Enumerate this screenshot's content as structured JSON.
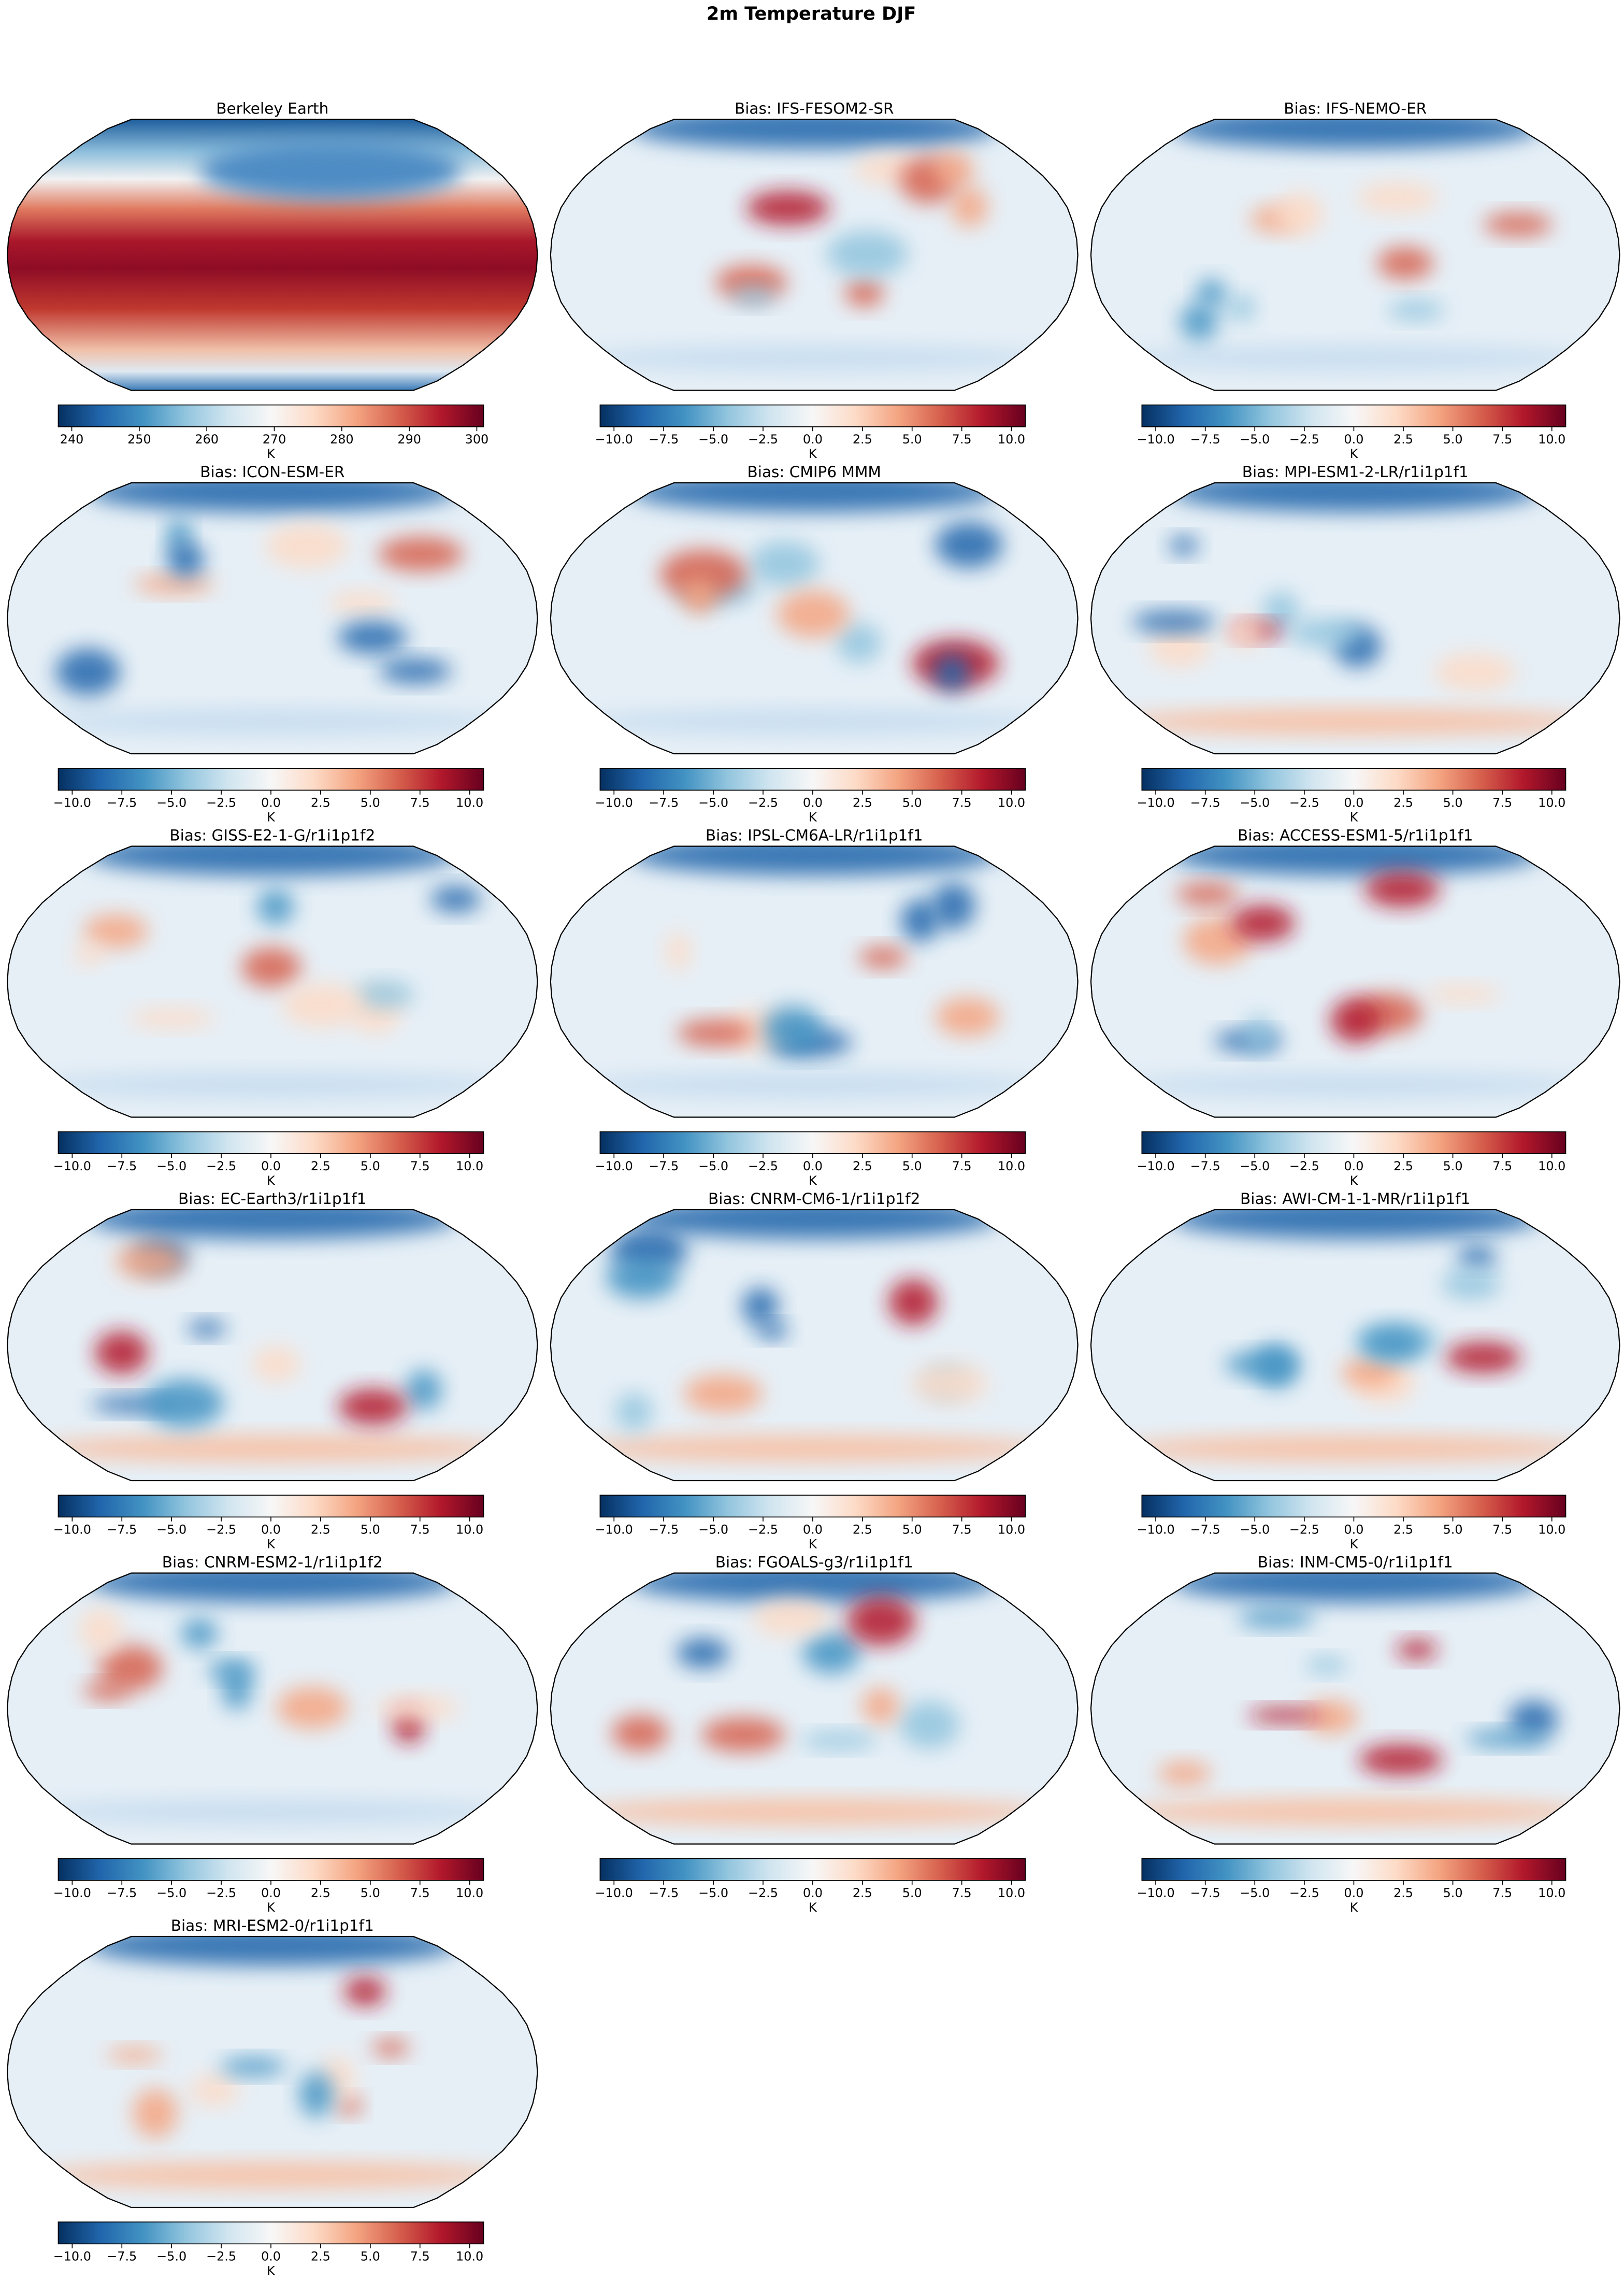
{
  "title": "2m Temperature DJF",
  "panels": [
    {
      "title": "Berkeley Earth",
      "colorbar": {
        "label": "K",
        "lim": [
          238,
          301
        ],
        "ticks": [
          240,
          250,
          260,
          270,
          280,
          290,
          300
        ]
      }
    },
    {
      "title": "Bias: IFS-FESOM2-SR",
      "colorbar": {
        "label": "K",
        "lim": [
          -10.7,
          10.7
        ],
        "ticks": [
          {
            "value": -10,
            "label": "−10.0"
          },
          {
            "value": -7.5,
            "label": "−7.5"
          },
          {
            "value": -5,
            "label": "−5.0"
          },
          {
            "value": -2.5,
            "label": "−2.5"
          },
          {
            "value": 0,
            "label": "0.0"
          },
          {
            "value": 2.5,
            "label": "2.5"
          },
          {
            "value": 5,
            "label": "5.0"
          },
          {
            "value": 7.5,
            "label": "7.5"
          },
          {
            "value": 10,
            "label": "10.0"
          }
        ]
      }
    },
    {
      "title": "Bias: IFS-NEMO-ER",
      "colorbar": {
        "label": "K",
        "lim": [
          -10.7,
          10.7
        ],
        "ticks": [
          {
            "value": -10,
            "label": "−10.0"
          },
          {
            "value": -7.5,
            "label": "−7.5"
          },
          {
            "value": -5,
            "label": "−5.0"
          },
          {
            "value": -2.5,
            "label": "−2.5"
          },
          {
            "value": 0,
            "label": "0.0"
          },
          {
            "value": 2.5,
            "label": "2.5"
          },
          {
            "value": 5,
            "label": "5.0"
          },
          {
            "value": 7.5,
            "label": "7.5"
          },
          {
            "value": 10,
            "label": "10.0"
          }
        ]
      }
    },
    {
      "title": "Bias: ICON-ESM-ER",
      "colorbar": {
        "label": "K",
        "lim": [
          -10.7,
          10.7
        ],
        "ticks": [
          {
            "value": -10,
            "label": "−10.0"
          },
          {
            "value": -7.5,
            "label": "−7.5"
          },
          {
            "value": -5,
            "label": "−5.0"
          },
          {
            "value": -2.5,
            "label": "−2.5"
          },
          {
            "value": 0,
            "label": "0.0"
          },
          {
            "value": 2.5,
            "label": "2.5"
          },
          {
            "value": 5,
            "label": "5.0"
          },
          {
            "value": 7.5,
            "label": "7.5"
          },
          {
            "value": 10,
            "label": "10.0"
          }
        ]
      }
    },
    {
      "title": "Bias: CMIP6 MMM",
      "colorbar": {
        "label": "K",
        "lim": [
          -10.7,
          10.7
        ],
        "ticks": [
          {
            "value": -10,
            "label": "−10.0"
          },
          {
            "value": -7.5,
            "label": "−7.5"
          },
          {
            "value": -5,
            "label": "−5.0"
          },
          {
            "value": -2.5,
            "label": "−2.5"
          },
          {
            "value": 0,
            "label": "0.0"
          },
          {
            "value": 2.5,
            "label": "2.5"
          },
          {
            "value": 5,
            "label": "5.0"
          },
          {
            "value": 7.5,
            "label": "7.5"
          },
          {
            "value": 10,
            "label": "10.0"
          }
        ]
      }
    },
    {
      "title": "Bias: MPI-ESM1-2-LR/r1i1p1f1",
      "colorbar": {
        "label": "K",
        "lim": [
          -10.7,
          10.7
        ],
        "ticks": [
          {
            "value": -10,
            "label": "−10.0"
          },
          {
            "value": -7.5,
            "label": "−7.5"
          },
          {
            "value": -5,
            "label": "−5.0"
          },
          {
            "value": -2.5,
            "label": "−2.5"
          },
          {
            "value": 0,
            "label": "0.0"
          },
          {
            "value": 2.5,
            "label": "2.5"
          },
          {
            "value": 5,
            "label": "5.0"
          },
          {
            "value": 7.5,
            "label": "7.5"
          },
          {
            "value": 10,
            "label": "10.0"
          }
        ]
      }
    },
    {
      "title": "Bias: GISS-E2-1-G/r1i1p1f2",
      "colorbar": {
        "label": "K",
        "lim": [
          -10.7,
          10.7
        ],
        "ticks": [
          {
            "value": -10,
            "label": "−10.0"
          },
          {
            "value": -7.5,
            "label": "−7.5"
          },
          {
            "value": -5,
            "label": "−5.0"
          },
          {
            "value": -2.5,
            "label": "−2.5"
          },
          {
            "value": 0,
            "label": "0.0"
          },
          {
            "value": 2.5,
            "label": "2.5"
          },
          {
            "value": 5,
            "label": "5.0"
          },
          {
            "value": 7.5,
            "label": "7.5"
          },
          {
            "value": 10,
            "label": "10.0"
          }
        ]
      }
    },
    {
      "title": "Bias: IPSL-CM6A-LR/r1i1p1f1",
      "colorbar": {
        "label": "K",
        "lim": [
          -10.7,
          10.7
        ],
        "ticks": [
          {
            "value": -10,
            "label": "−10.0"
          },
          {
            "value": -7.5,
            "label": "−7.5"
          },
          {
            "value": -5,
            "label": "−5.0"
          },
          {
            "value": -2.5,
            "label": "−2.5"
          },
          {
            "value": 0,
            "label": "0.0"
          },
          {
            "value": 2.5,
            "label": "2.5"
          },
          {
            "value": 5,
            "label": "5.0"
          },
          {
            "value": 7.5,
            "label": "7.5"
          },
          {
            "value": 10,
            "label": "10.0"
          }
        ]
      }
    },
    {
      "title": "Bias: ACCESS-ESM1-5/r1i1p1f1",
      "colorbar": {
        "label": "K",
        "lim": [
          -10.7,
          10.7
        ],
        "ticks": [
          {
            "value": -10,
            "label": "−10.0"
          },
          {
            "value": -7.5,
            "label": "−7.5"
          },
          {
            "value": -5,
            "label": "−5.0"
          },
          {
            "value": -2.5,
            "label": "−2.5"
          },
          {
            "value": 0,
            "label": "0.0"
          },
          {
            "value": 2.5,
            "label": "2.5"
          },
          {
            "value": 5,
            "label": "5.0"
          },
          {
            "value": 7.5,
            "label": "7.5"
          },
          {
            "value": 10,
            "label": "10.0"
          }
        ]
      }
    },
    {
      "title": "Bias: EC-Earth3/r1i1p1f1",
      "colorbar": {
        "label": "K",
        "lim": [
          -10.7,
          10.7
        ],
        "ticks": [
          {
            "value": -10,
            "label": "−10.0"
          },
          {
            "value": -7.5,
            "label": "−7.5"
          },
          {
            "value": -5,
            "label": "−5.0"
          },
          {
            "value": -2.5,
            "label": "−2.5"
          },
          {
            "value": 0,
            "label": "0.0"
          },
          {
            "value": 2.5,
            "label": "2.5"
          },
          {
            "value": 5,
            "label": "5.0"
          },
          {
            "value": 7.5,
            "label": "7.5"
          },
          {
            "value": 10,
            "label": "10.0"
          }
        ]
      }
    },
    {
      "title": "Bias: CNRM-CM6-1/r1i1p1f2",
      "colorbar": {
        "label": "K",
        "lim": [
          -10.7,
          10.7
        ],
        "ticks": [
          {
            "value": -10,
            "label": "−10.0"
          },
          {
            "value": -7.5,
            "label": "−7.5"
          },
          {
            "value": -5,
            "label": "−5.0"
          },
          {
            "value": -2.5,
            "label": "−2.5"
          },
          {
            "value": 0,
            "label": "0.0"
          },
          {
            "value": 2.5,
            "label": "2.5"
          },
          {
            "value": 5,
            "label": "5.0"
          },
          {
            "value": 7.5,
            "label": "7.5"
          },
          {
            "value": 10,
            "label": "10.0"
          }
        ]
      }
    },
    {
      "title": "Bias: AWI-CM-1-1-MR/r1i1p1f1",
      "colorbar": {
        "label": "K",
        "lim": [
          -10.7,
          10.7
        ],
        "ticks": [
          {
            "value": -10,
            "label": "−10.0"
          },
          {
            "value": -7.5,
            "label": "−7.5"
          },
          {
            "value": -5,
            "label": "−5.0"
          },
          {
            "value": -2.5,
            "label": "−2.5"
          },
          {
            "value": 0,
            "label": "0.0"
          },
          {
            "value": 2.5,
            "label": "2.5"
          },
          {
            "value": 5,
            "label": "5.0"
          },
          {
            "value": 7.5,
            "label": "7.5"
          },
          {
            "value": 10,
            "label": "10.0"
          }
        ]
      }
    },
    {
      "title": "Bias: CNRM-ESM2-1/r1i1p1f2",
      "colorbar": {
        "label": "K",
        "lim": [
          -10.7,
          10.7
        ],
        "ticks": [
          {
            "value": -10,
            "label": "−10.0"
          },
          {
            "value": -7.5,
            "label": "−7.5"
          },
          {
            "value": -5,
            "label": "−5.0"
          },
          {
            "value": -2.5,
            "label": "−2.5"
          },
          {
            "value": 0,
            "label": "0.0"
          },
          {
            "value": 2.5,
            "label": "2.5"
          },
          {
            "value": 5,
            "label": "5.0"
          },
          {
            "value": 7.5,
            "label": "7.5"
          },
          {
            "value": 10,
            "label": "10.0"
          }
        ]
      }
    },
    {
      "title": "Bias: FGOALS-g3/r1i1p1f1",
      "colorbar": {
        "label": "K",
        "lim": [
          -10.7,
          10.7
        ],
        "ticks": [
          {
            "value": -10,
            "label": "−10.0"
          },
          {
            "value": -7.5,
            "label": "−7.5"
          },
          {
            "value": -5,
            "label": "−5.0"
          },
          {
            "value": -2.5,
            "label": "−2.5"
          },
          {
            "value": 0,
            "label": "0.0"
          },
          {
            "value": 2.5,
            "label": "2.5"
          },
          {
            "value": 5,
            "label": "5.0"
          },
          {
            "value": 7.5,
            "label": "7.5"
          },
          {
            "value": 10,
            "label": "10.0"
          }
        ]
      }
    },
    {
      "title": "Bias: INM-CM5-0/r1i1p1f1",
      "colorbar": {
        "label": "K",
        "lim": [
          -10.7,
          10.7
        ],
        "ticks": [
          {
            "value": -10,
            "label": "−10.0"
          },
          {
            "value": -7.5,
            "label": "−7.5"
          },
          {
            "value": -5,
            "label": "−5.0"
          },
          {
            "value": -2.5,
            "label": "−2.5"
          },
          {
            "value": 0,
            "label": "0.0"
          },
          {
            "value": 2.5,
            "label": "2.5"
          },
          {
            "value": 5,
            "label": "5.0"
          },
          {
            "value": 7.5,
            "label": "7.5"
          },
          {
            "value": 10,
            "label": "10.0"
          }
        ]
      }
    },
    {
      "title": "Bias: MRI-ESM2-0/r1i1p1f1",
      "colorbar": {
        "label": "K",
        "lim": [
          -10.7,
          10.7
        ],
        "ticks": [
          {
            "value": -10,
            "label": "−10.0"
          },
          {
            "value": -7.5,
            "label": "−7.5"
          },
          {
            "value": -5,
            "label": "−5.0"
          },
          {
            "value": -2.5,
            "label": "−2.5"
          },
          {
            "value": 0,
            "label": "0.0"
          },
          {
            "value": 2.5,
            "label": "2.5"
          },
          {
            "value": 5,
            "label": "5.0"
          },
          {
            "value": 7.5,
            "label": "7.5"
          },
          {
            "value": 10,
            "label": "10.0"
          }
        ]
      }
    }
  ]
}
